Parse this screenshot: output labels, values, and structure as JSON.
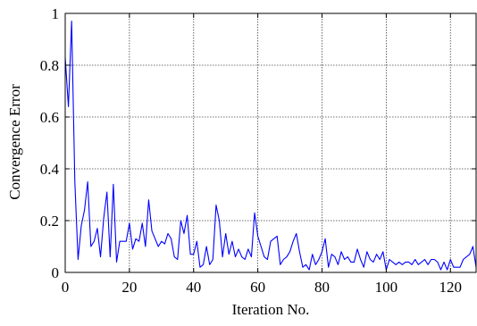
{
  "chart_data": {
    "type": "line",
    "title": "",
    "xlabel": "Iteration No.",
    "ylabel": "Convergence Error",
    "xlim": [
      0,
      128
    ],
    "ylim": [
      0,
      1
    ],
    "grid": true,
    "legend": "none",
    "x_ticks": [
      0,
      20,
      40,
      60,
      80,
      100,
      120
    ],
    "x_tick_labels": [
      "0",
      "20",
      "40",
      "60",
      "80",
      "100",
      "120"
    ],
    "y_ticks": [
      0,
      0.2,
      0.4,
      0.6,
      0.8,
      1
    ],
    "y_tick_labels": [
      "0",
      "0.2",
      "0.4",
      "0.6",
      "0.8",
      "1"
    ],
    "series": [
      {
        "color": "#0000ff",
        "x": [
          0,
          1,
          2,
          3,
          4,
          5,
          6,
          7,
          8,
          9,
          10,
          11,
          12,
          13,
          14,
          15,
          16,
          17,
          18,
          19,
          20,
          21,
          22,
          23,
          24,
          25,
          26,
          27,
          28,
          29,
          30,
          31,
          32,
          33,
          34,
          35,
          36,
          37,
          38,
          39,
          40,
          41,
          42,
          43,
          44,
          45,
          46,
          47,
          48,
          49,
          50,
          51,
          52,
          53,
          54,
          55,
          56,
          57,
          58,
          59,
          60,
          61,
          62,
          63,
          64,
          65,
          66,
          67,
          68,
          69,
          70,
          71,
          72,
          73,
          74,
          75,
          76,
          77,
          78,
          79,
          80,
          81,
          82,
          83,
          84,
          85,
          86,
          87,
          88,
          89,
          90,
          91,
          92,
          93,
          94,
          95,
          96,
          97,
          98,
          99,
          100,
          101,
          102,
          103,
          104,
          105,
          106,
          107,
          108,
          109,
          110,
          111,
          112,
          113,
          114,
          115,
          116,
          117,
          118,
          119,
          120,
          121,
          122,
          123,
          124,
          125,
          126,
          127,
          128
        ],
        "values": [
          0.83,
          0.64,
          0.97,
          0.35,
          0.05,
          0.18,
          0.24,
          0.35,
          0.1,
          0.12,
          0.17,
          0.06,
          0.21,
          0.31,
          0.06,
          0.34,
          0.04,
          0.12,
          0.12,
          0.12,
          0.19,
          0.09,
          0.13,
          0.12,
          0.19,
          0.1,
          0.28,
          0.16,
          0.13,
          0.1,
          0.12,
          0.11,
          0.15,
          0.13,
          0.06,
          0.05,
          0.2,
          0.15,
          0.22,
          0.07,
          0.07,
          0.12,
          0.02,
          0.03,
          0.1,
          0.03,
          0.05,
          0.26,
          0.2,
          0.06,
          0.15,
          0.07,
          0.12,
          0.06,
          0.09,
          0.06,
          0.05,
          0.09,
          0.06,
          0.23,
          0.14,
          0.1,
          0.06,
          0.05,
          0.12,
          0.13,
          0.14,
          0.03,
          0.05,
          0.06,
          0.08,
          0.12,
          0.15,
          0.08,
          0.02,
          0.03,
          0.01,
          0.07,
          0.03,
          0.05,
          0.08,
          0.13,
          0.02,
          0.07,
          0.06,
          0.03,
          0.08,
          0.05,
          0.06,
          0.04,
          0.04,
          0.09,
          0.05,
          0.02,
          0.08,
          0.05,
          0.04,
          0.07,
          0.05,
          0.08,
          0.01,
          0.05,
          0.04,
          0.03,
          0.04,
          0.03,
          0.04,
          0.04,
          0.03,
          0.05,
          0.03,
          0.04,
          0.05,
          0.03,
          0.05,
          0.05,
          0.04,
          0.01,
          0.04,
          0.01,
          0.05,
          0.02,
          0.02,
          0.02,
          0.05,
          0.06,
          0.07,
          0.1,
          0.02
        ]
      }
    ]
  }
}
